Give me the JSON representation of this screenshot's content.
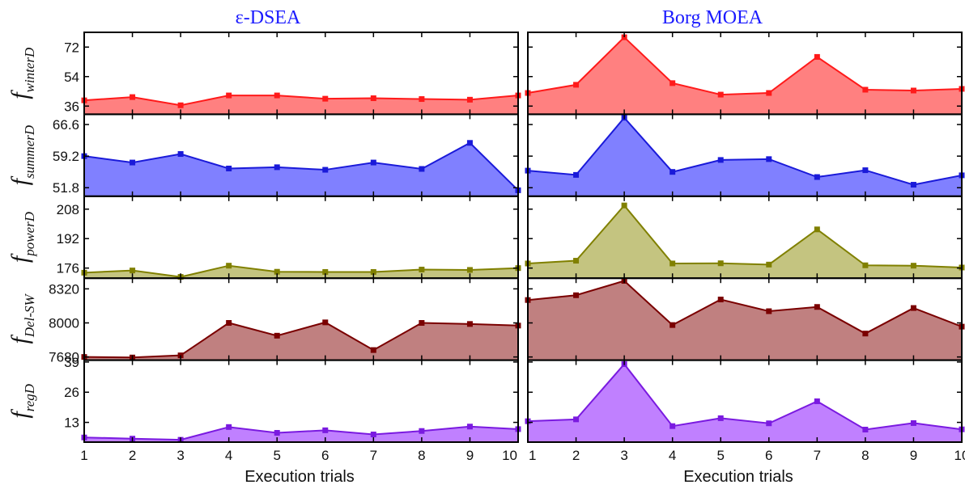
{
  "chart_data": {
    "type": "area",
    "x": [
      1,
      2,
      3,
      4,
      5,
      6,
      7,
      8,
      9,
      10
    ],
    "xlabel": "Execution trials",
    "columns": [
      {
        "title": "ε-DSEA"
      },
      {
        "title": "Borg MOEA"
      }
    ],
    "rows": [
      {
        "ylabel_main": "f",
        "ylabel_sub": "winterD",
        "ylim": [
          31,
          81
        ],
        "yticks": [
          36,
          54,
          72
        ],
        "color": "#ff1a1a",
        "fill": "#ff8080",
        "values": [
          [
            39.5,
            41.5,
            36.5,
            42.5,
            42.5,
            40.5,
            40.8,
            40.3,
            39.9,
            42.5
          ],
          [
            44,
            49,
            78,
            50,
            43,
            44,
            66,
            46,
            45.5,
            46.5
          ]
        ]
      },
      {
        "ylabel_main": "f",
        "ylabel_sub": "summerD",
        "ylim": [
          49.8,
          69.0
        ],
        "yticks": [
          51.8,
          59.2,
          66.6
        ],
        "color": "#1a1ad9",
        "fill": "#8080ff",
        "values": [
          [
            59.2,
            57.7,
            59.7,
            56.3,
            56.6,
            56.0,
            57.7,
            56.2,
            62.3,
            51.2
          ],
          [
            55.8,
            54.8,
            68.2,
            55.5,
            58.3,
            58.5,
            54.3,
            55.9,
            52.5,
            54.7
          ]
        ]
      },
      {
        "ylabel_main": "f",
        "ylabel_sub": "powerD",
        "ylim": [
          170.5,
          215.0
        ],
        "yticks": [
          176,
          192,
          208
        ],
        "color": "#808000",
        "fill": "#c4c480",
        "values": [
          [
            173.5,
            174.7,
            171.2,
            177.3,
            174.0,
            173.9,
            173.9,
            175.2,
            175.0,
            176.0
          ],
          [
            178.5,
            180.0,
            210.0,
            178.5,
            178.6,
            177.9,
            197.0,
            177.5,
            177.3,
            176.3
          ]
        ]
      },
      {
        "ylabel_main": "f",
        "ylabel_sub": "Del-SW",
        "ylim": [
          7650,
          8420
        ],
        "yticks": [
          7680,
          8000,
          8320
        ],
        "color": "#7a0000",
        "fill": "#c08080",
        "values": [
          [
            7680,
            7675,
            7695,
            8000,
            7880,
            8005,
            7745,
            8000,
            7990,
            7975
          ],
          [
            8215,
            8260,
            8395,
            7980,
            8220,
            8110,
            8150,
            7900,
            8140,
            7965
          ]
        ]
      },
      {
        "ylabel_main": "f",
        "ylabel_sub": "regD",
        "ylim": [
          4.5,
          39.8
        ],
        "yticks": [
          13,
          26,
          39
        ],
        "color": "#7a1ae0",
        "fill": "#c080ff",
        "values": [
          [
            6.5,
            6.0,
            5.5,
            11.0,
            8.5,
            9.6,
            7.8,
            9.3,
            11.2,
            10.1
          ],
          [
            13.5,
            14.3,
            38.1,
            11.4,
            14.8,
            12.6,
            22.1,
            9.9,
            12.7,
            10.0
          ]
        ]
      }
    ],
    "grid": false,
    "legend": "none"
  }
}
